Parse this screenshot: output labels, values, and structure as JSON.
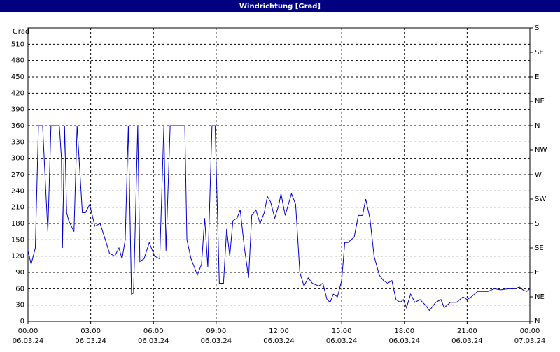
{
  "chart_data": {
    "type": "line",
    "title": "Windrichtung [Grad]",
    "y_label": "Grad",
    "xlim": [
      0,
      24
    ],
    "xticks": [
      {
        "value": 0,
        "label": "00:00"
      },
      {
        "value": 3,
        "label": "03:00"
      },
      {
        "value": 6,
        "label": "06:00"
      },
      {
        "value": 9,
        "label": "09:00"
      },
      {
        "value": 12,
        "label": "12:00"
      },
      {
        "value": 15,
        "label": "15:00"
      },
      {
        "value": 18,
        "label": "18:00"
      },
      {
        "value": 21,
        "label": "21:00"
      },
      {
        "value": 24,
        "label": "00:00"
      }
    ],
    "xtick_dates": [
      "06.03.24",
      "06.03.24",
      "06.03.24",
      "06.03.24",
      "06.03.24",
      "06.03.24",
      "06.03.24",
      "06.03.24",
      "07.03.24"
    ],
    "ylim": [
      0,
      540
    ],
    "yticks": [
      0,
      30,
      60,
      90,
      120,
      150,
      180,
      210,
      240,
      270,
      300,
      330,
      360,
      390,
      420,
      450,
      480,
      510
    ],
    "y2lim": [
      0,
      540
    ],
    "y2ticks": [
      {
        "value": 0,
        "label": "N"
      },
      {
        "value": 45,
        "label": "NE"
      },
      {
        "value": 90,
        "label": "E"
      },
      {
        "value": 135,
        "label": "SE"
      },
      {
        "value": 180,
        "label": "S"
      },
      {
        "value": 225,
        "label": "SW"
      },
      {
        "value": 270,
        "label": "W"
      },
      {
        "value": 315,
        "label": "NW"
      },
      {
        "value": 360,
        "label": "N"
      },
      {
        "value": 405,
        "label": "NE"
      },
      {
        "value": 450,
        "label": "E"
      },
      {
        "value": 495,
        "label": "SE"
      },
      {
        "value": 540,
        "label": "S"
      }
    ],
    "grid": true,
    "series": [
      {
        "color": "#0000cc",
        "x": [
          0.0,
          0.15,
          0.35,
          0.5,
          0.7,
          0.85,
          0.95,
          1.1,
          1.5,
          1.6,
          1.65,
          1.75,
          1.85,
          1.95,
          2.2,
          2.35,
          2.6,
          2.75,
          2.95,
          3.2,
          3.45,
          3.7,
          3.9,
          4.15,
          4.35,
          4.5,
          4.65,
          4.8,
          4.95,
          5.05,
          5.25,
          5.35,
          5.55,
          5.8,
          6.05,
          6.3,
          6.5,
          6.6,
          6.8,
          7.5,
          7.6,
          7.8,
          8.1,
          8.3,
          8.45,
          8.6,
          8.8,
          8.95,
          9.15,
          9.35,
          9.5,
          9.65,
          9.8,
          10.0,
          10.15,
          10.35,
          10.55,
          10.7,
          10.9,
          11.1,
          11.3,
          11.45,
          11.6,
          11.8,
          12.0,
          12.1,
          12.3,
          12.6,
          12.8,
          13.0,
          13.2,
          13.4,
          13.6,
          13.9,
          14.1,
          14.3,
          14.45,
          14.6,
          14.8,
          15.0,
          15.15,
          15.3,
          15.6,
          15.8,
          16.0,
          16.15,
          16.35,
          16.55,
          16.8,
          17.0,
          17.2,
          17.4,
          17.6,
          17.8,
          17.95,
          18.1,
          18.3,
          18.5,
          18.75,
          19.0,
          19.2,
          19.5,
          19.75,
          19.9,
          20.2,
          20.5,
          20.8,
          21.0,
          21.2,
          21.5,
          22.0,
          22.3,
          22.6,
          23.0,
          23.3,
          23.5,
          23.7,
          23.85,
          24.0
        ],
        "values": [
          130,
          105,
          135,
          360,
          360,
          240,
          165,
          360,
          360,
          300,
          135,
          360,
          200,
          185,
          165,
          360,
          200,
          200,
          215,
          175,
          180,
          150,
          125,
          120,
          135,
          115,
          150,
          360,
          50,
          52,
          360,
          110,
          115,
          145,
          120,
          115,
          360,
          130,
          360,
          360,
          150,
          115,
          85,
          105,
          190,
          100,
          360,
          360,
          70,
          70,
          170,
          120,
          185,
          190,
          205,
          135,
          80,
          195,
          205,
          180,
          200,
          230,
          220,
          190,
          215,
          235,
          195,
          235,
          215,
          90,
          65,
          80,
          70,
          65,
          70,
          40,
          35,
          50,
          45,
          75,
          145,
          145,
          155,
          195,
          195,
          225,
          190,
          120,
          85,
          75,
          70,
          75,
          40,
          35,
          40,
          25,
          50,
          35,
          40,
          30,
          20,
          35,
          40,
          25,
          35,
          35,
          45,
          40,
          45,
          55,
          55,
          60,
          58,
          60,
          60,
          63,
          57,
          55,
          60
        ]
      }
    ]
  }
}
